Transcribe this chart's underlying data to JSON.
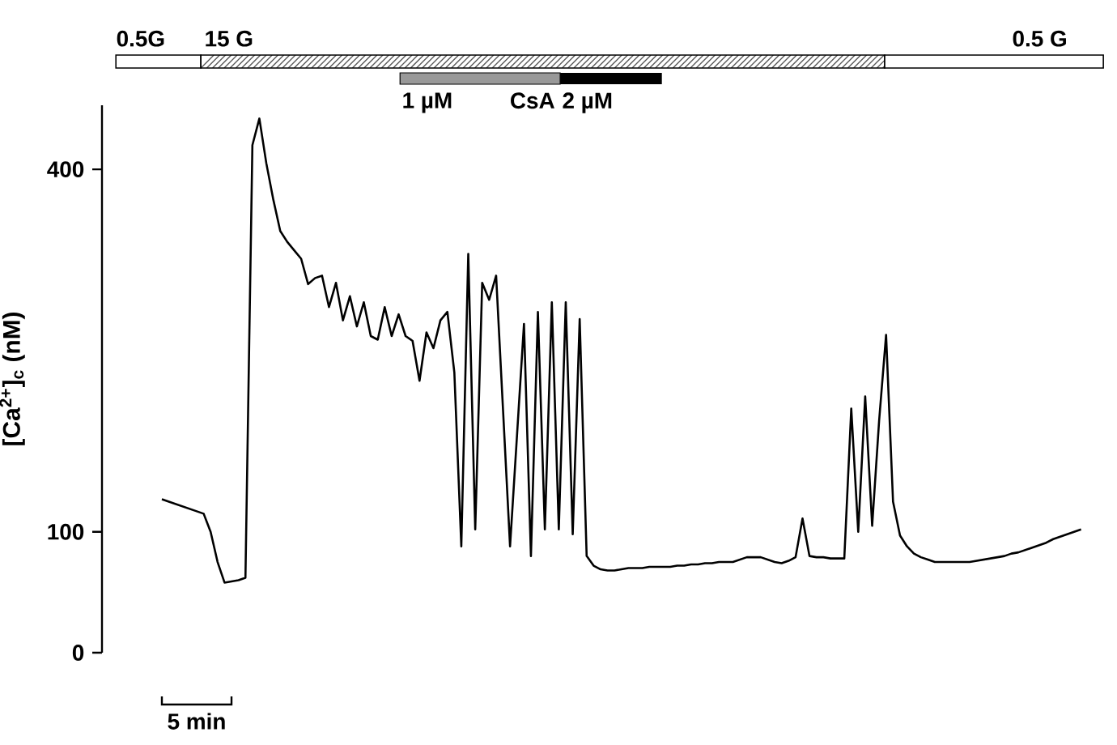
{
  "chart_data": {
    "type": "line",
    "ylabel": "[Ca$^{2+}$]$_{c}$ (nM)",
    "xlabel": "5 min",
    "ylim": [
      0,
      453
    ],
    "yticks": [
      0,
      100,
      400
    ],
    "tick_labels": "y",
    "line_style": "solid",
    "categories": [
      null,
      null,
      null,
      null,
      null,
      null,
      null,
      null,
      null,
      null,
      null,
      null,
      null,
      null,
      null,
      null,
      null,
      null,
      null,
      null,
      null,
      null,
      null,
      null,
      null,
      null,
      null,
      null,
      null,
      null,
      null,
      null,
      null,
      null,
      null,
      null,
      null,
      null,
      null,
      null,
      null,
      null,
      null,
      null,
      null,
      null,
      null,
      null,
      null,
      null,
      null,
      null,
      null,
      null,
      null,
      null,
      null,
      null,
      null,
      null,
      null,
      null,
      null,
      null,
      null,
      null,
      null,
      null,
      null,
      null,
      null,
      null,
      null,
      null,
      null,
      null,
      null,
      null,
      null,
      null,
      null,
      null,
      null,
      null,
      null,
      null,
      null,
      null,
      null,
      null,
      null,
      null,
      null,
      null,
      null,
      null,
      null,
      null,
      null,
      null,
      null,
      null,
      null,
      null,
      null,
      null,
      null,
      null,
      null,
      null,
      null,
      null,
      null,
      null,
      null,
      null,
      null,
      null,
      null,
      null,
      null,
      null,
      null,
      null,
      null,
      null,
      null,
      null,
      null,
      null,
      null,
      null,
      null
    ],
    "series": [
      {
        "color": "#000000",
        "values": [
          127,
          125,
          123,
          121,
          119,
          117,
          115,
          100,
          75,
          58,
          59,
          60,
          62,
          420,
          442,
          405,
          375,
          349,
          340,
          333,
          326,
          305,
          310,
          312,
          286,
          306,
          275,
          295,
          270,
          290,
          262,
          259,
          286,
          262,
          280,
          262,
          258,
          225,
          265,
          252,
          275,
          282,
          232,
          88,
          330,
          102,
          306,
          292,
          312,
          200,
          88,
          180,
          272,
          80,
          282,
          102,
          290,
          102,
          290,
          98,
          276,
          80,
          72,
          69,
          68,
          68,
          69,
          70,
          70,
          70,
          71,
          71,
          71,
          71,
          72,
          72,
          73,
          73,
          74,
          74,
          75,
          75,
          75,
          77,
          79,
          79,
          79,
          77,
          75,
          74,
          76,
          79,
          111,
          80,
          79,
          79,
          78,
          78,
          78,
          202,
          100,
          212,
          105,
          192,
          263,
          125,
          97,
          88,
          82,
          79,
          77,
          75,
          75,
          75,
          75,
          75,
          75,
          76,
          77,
          78,
          79,
          80,
          82,
          83,
          85,
          87,
          89,
          91,
          94,
          96,
          98,
          100,
          102
        ]
      }
    ],
    "annotations": [
      "0.5G",
      "15 G",
      "0.5 G",
      "1 µM",
      "CsA",
      "2 µM"
    ]
  }
}
